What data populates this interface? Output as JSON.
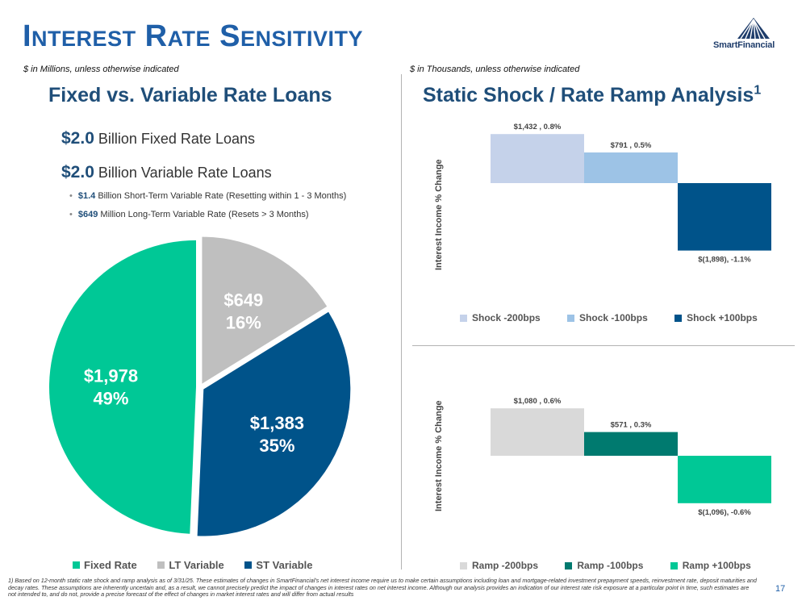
{
  "title": "Interest Rate Sensitivity",
  "logo_text": "SmartFinancial",
  "left": {
    "subtitle": "$ in Millions, unless otherwise indicated",
    "heading": "Fixed vs. Variable Rate Loans",
    "fixed_line": {
      "amount": "$2.0",
      "text": " Billion Fixed Rate Loans"
    },
    "variable_line": {
      "amount": "$2.0",
      "text": " Billion Variable Rate Loans"
    },
    "bullets": [
      {
        "amount": "$1.4",
        "text": " Billion Short-Term Variable Rate (Resetting within 1 - 3 Months)"
      },
      {
        "amount": "$649",
        "text": " Million Long-Term Variable Rate (Resets > 3 Months)"
      }
    ],
    "legend": [
      "Fixed Rate",
      "LT Variable",
      "ST Variable"
    ]
  },
  "right": {
    "subtitle": "$ in Thousands, unless otherwise indicated",
    "heading": "Static Shock / Rate Ramp Analysis",
    "heading_sup": "1",
    "shock_ylabel": "Interest Income % Change",
    "ramp_ylabel": "Interest Income % Change",
    "shock_legend": [
      "Shock -200bps",
      "Shock -100bps",
      "Shock +100bps"
    ],
    "ramp_legend": [
      "Ramp -200bps",
      "Ramp -100bps",
      "Ramp +100bps"
    ]
  },
  "colors": {
    "fixed": "#00c896",
    "lt_variable": "#bfbfbf",
    "st_variable": "#00538a",
    "shock_200": "#c5d2ea",
    "shock_100": "#9dc3e6",
    "shock_p100": "#00538a",
    "ramp_200": "#d9d9d9",
    "ramp_100": "#007a6f",
    "ramp_p100": "#00c896"
  },
  "chart_data": [
    {
      "type": "pie",
      "categories": [
        "Fixed Rate",
        "LT Variable",
        "ST Variable"
      ],
      "values": [
        1978,
        649,
        1383
      ],
      "value_labels": [
        "$1,978",
        "$649",
        "$1,383"
      ],
      "percent_labels": [
        "49%",
        "16%",
        "35%"
      ]
    },
    {
      "type": "bar",
      "title": "Static Shock",
      "ylabel": "Interest Income % Change",
      "categories": [
        "Shock -200bps",
        "Shock -100bps",
        "Shock +100bps"
      ],
      "values": [
        0.8,
        0.5,
        -1.1
      ],
      "data_labels": [
        "$1,432 , 0.8%",
        "$791 , 0.5%",
        "$(1,898), -1.1%"
      ],
      "ylim": [
        -1.1,
        0.8
      ]
    },
    {
      "type": "bar",
      "title": "Rate Ramp",
      "ylabel": "Interest Income % Change",
      "categories": [
        "Ramp -200bps",
        "Ramp -100bps",
        "Ramp +100bps"
      ],
      "values": [
        0.6,
        0.3,
        -0.6
      ],
      "data_labels": [
        "$1,080 , 0.6%",
        "$571 , 0.3%",
        "$(1,096), -0.6%"
      ],
      "ylim": [
        -0.6,
        0.6
      ]
    }
  ],
  "footnote": "1)  Based on 12-month static rate shock and ramp analysis as of 3/31/25. These estimates of changes in SmartFinancial's net interest income require us to make certain assumptions including loan and mortgage-related investment prepayment speeds, reinvestment rate, deposit maturities and decay rates. These assumptions are inherently uncertain and, as a result, we cannot precisely predict the impact of changes in interest rates on net interest income. Although our analysis provides an indication of our interest rate risk exposure at a particular point in time, such estimates are not intended to, and do not, provide a precise forecast of the effect of changes in market interest rates and will differ from actual results",
  "page_number": "17"
}
